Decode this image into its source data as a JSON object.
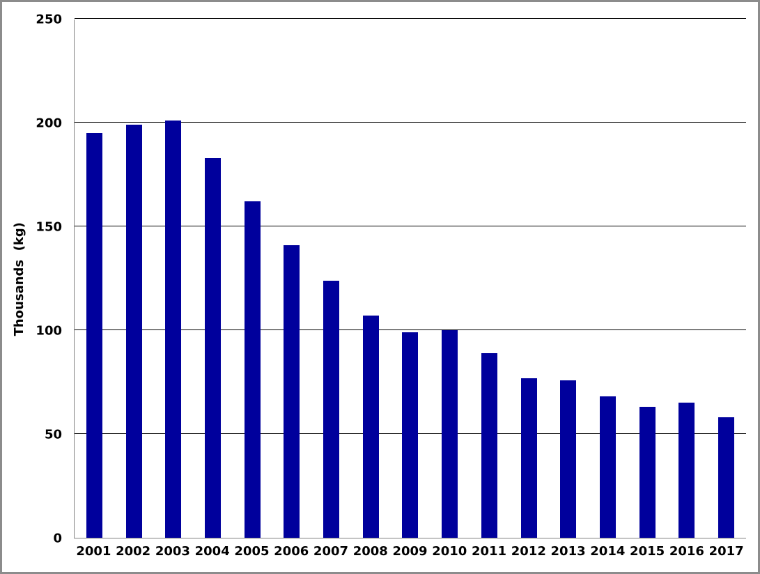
{
  "window": {
    "background_color": "#ffffff",
    "border_color": "#8c8c8c"
  },
  "chart_data": {
    "type": "bar",
    "title": "",
    "xlabel": "",
    "ylabel": "Thousands  (kg)",
    "categories": [
      "2001",
      "2002",
      "2003",
      "2004",
      "2005",
      "2006",
      "2007",
      "2008",
      "2009",
      "2010",
      "2011",
      "2012",
      "2013",
      "2014",
      "2015",
      "2016",
      "2017"
    ],
    "values": [
      195,
      199,
      201,
      183,
      162,
      141,
      124,
      107,
      99,
      100,
      89,
      77,
      76,
      68,
      63,
      65,
      58
    ],
    "ylim": [
      0,
      250
    ],
    "yticks": [
      0,
      50,
      100,
      150,
      200,
      250
    ],
    "grid": true,
    "legend": false,
    "bar_color": "#00009c",
    "gridline_color": "#000000",
    "axis_line_color": "#808080",
    "text_color": "#000000"
  }
}
